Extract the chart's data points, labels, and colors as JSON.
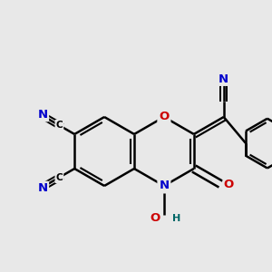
{
  "background_color": "#e8e8e8",
  "bond_color": "#000000",
  "atom_colors": {
    "N": "#0000cc",
    "O": "#cc0000",
    "C": "#000000",
    "H": "#006666"
  },
  "figsize": [
    3.0,
    3.0
  ],
  "dpi": 100
}
